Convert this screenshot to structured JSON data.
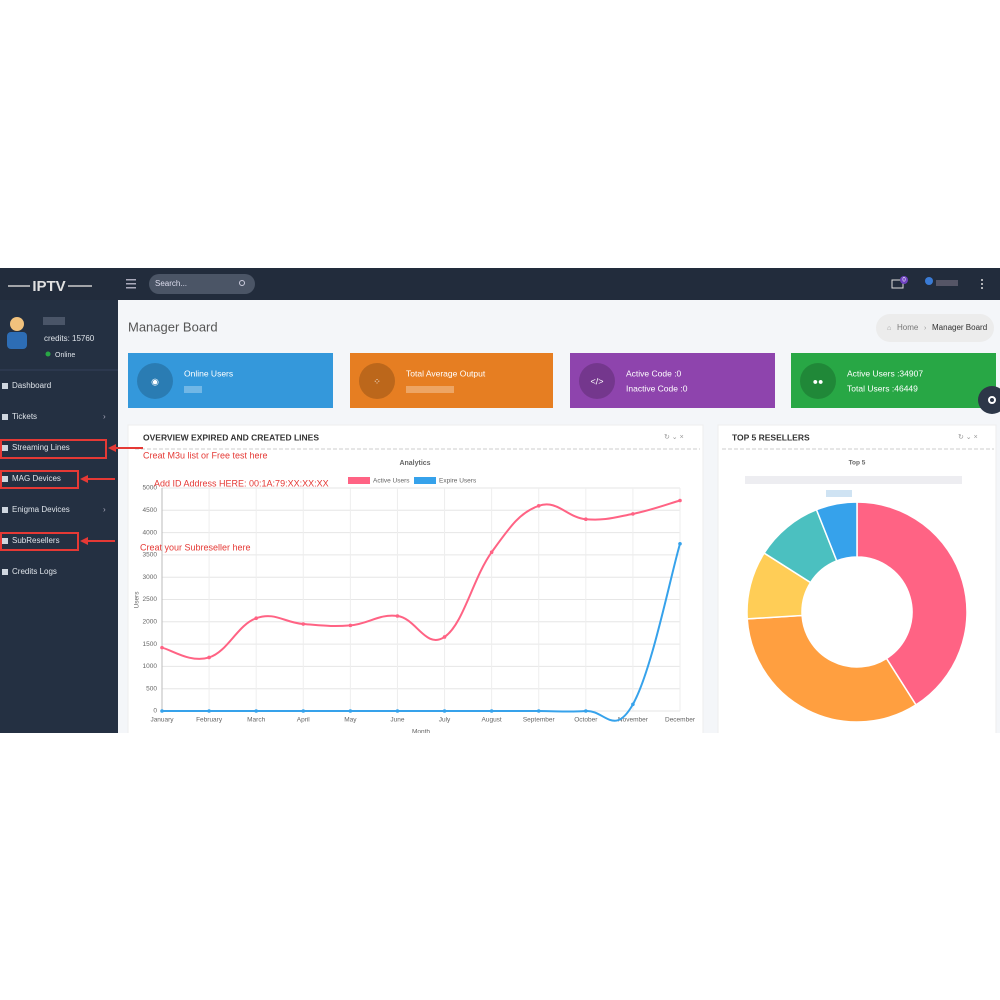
{
  "topbar": {
    "brand": "IPTV",
    "search_placeholder": "Search...",
    "notification_count": "0"
  },
  "sidebar": {
    "credits": "credits: 15760",
    "status": "Online",
    "menu": [
      "Dashboard",
      "Tickets",
      "Streaming Lines",
      "MAG Devices",
      "Enigma Devices",
      "SubResellers",
      "Credits Logs"
    ]
  },
  "annotations": [
    "Creat M3u list or Free test here",
    "Add ID Address HERE: 00:1A:79:XX:XX:XX",
    "Creat your  Subreseller here"
  ],
  "header": {
    "title": "Manager Board",
    "breadcrumb": [
      "Home",
      "Manager Board"
    ]
  },
  "cards": [
    {
      "lines": [
        "Online Users"
      ]
    },
    {
      "lines": [
        "Total Average Output"
      ]
    },
    {
      "lines": [
        "Active Code :0",
        "Inactive Code :0"
      ]
    },
    {
      "lines": [
        "Active Users :34907",
        "Total Users :46449"
      ]
    }
  ],
  "panels": [
    "OVERVIEW EXPIRED AND CREATED LINES",
    "TOP 5 RESELLERS"
  ],
  "chart_data": [
    {
      "type": "line",
      "title": "Analytics",
      "y_label": "Users",
      "x_label": "Month",
      "categories": [
        "January",
        "February",
        "March",
        "April",
        "May",
        "June",
        "July",
        "August",
        "September",
        "October",
        "November",
        "December"
      ],
      "series": [
        {
          "name": "Active Users",
          "color": "#ff6384",
          "values": [
            1420,
            1200,
            2080,
            1950,
            1920,
            2130,
            1660,
            3560,
            4600,
            4300,
            4420,
            4720
          ]
        },
        {
          "name": "Expire Users",
          "color": "#36a2eb",
          "values": [
            0,
            0,
            0,
            0,
            0,
            0,
            0,
            0,
            0,
            0,
            150,
            3750
          ]
        }
      ],
      "ylim": [
        0,
        5000
      ],
      "yticks": [
        0,
        500,
        1000,
        1500,
        2000,
        2500,
        3000,
        3500,
        4000,
        4500,
        5000
      ],
      "grid": true
    },
    {
      "type": "doughnut",
      "title": "Top 5",
      "values": [
        41,
        33,
        10,
        10,
        6
      ],
      "colors": [
        "#ff6384",
        "#ff9f40",
        "#ffcd56",
        "#4bc0c0",
        "#36a2eb"
      ]
    }
  ]
}
